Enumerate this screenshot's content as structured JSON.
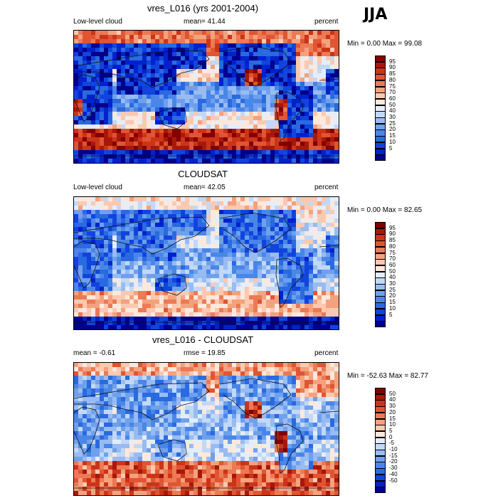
{
  "season": "JJA",
  "palette_levels": [
    "#00008b",
    "#0022cc",
    "#1144dd",
    "#2a6ae0",
    "#4a86e8",
    "#6fa0ec",
    "#98bcf2",
    "#c2d8f6",
    "#e4eefb",
    "#fde8dc",
    "#fbc9b0",
    "#f4a27e",
    "#ec7a55",
    "#e05533",
    "#cc3418",
    "#a8180a",
    "#820000"
  ],
  "panels": [
    {
      "title": "vres_L016 (yrs 2001-2004)",
      "left_label": "Low-level cloud",
      "mid_label": "mean=  41.44",
      "right_label": "percent",
      "minmax": "Min =   0.00 Max =  99.08",
      "colorbar_labels": [
        "95",
        "90",
        "85",
        "80",
        "75",
        "70",
        "60",
        "50",
        "40",
        "30",
        "25",
        "20",
        "15",
        "10",
        "5"
      ]
    },
    {
      "title": "CLOUDSAT",
      "left_label": "Low-level cloud",
      "mid_label": "mean=  42.05",
      "right_label": "percent",
      "minmax": "Min =   0.00 Max =  82.65",
      "colorbar_labels": [
        "95",
        "90",
        "85",
        "80",
        "75",
        "70",
        "60",
        "50",
        "40",
        "30",
        "25",
        "20",
        "15",
        "10",
        "5"
      ]
    },
    {
      "title": "vres_L016 - CLOUDSAT",
      "left_label": "mean =  -0.61",
      "mid_label": "rmse =  19.85",
      "right_label": "percent",
      "minmax": "Min = -52.63 Max =  82.77",
      "colorbar_labels": [
        "50",
        "40",
        "30",
        "20",
        "15",
        "10",
        "5",
        "0",
        "-5",
        "-10",
        "-15",
        "-20",
        "-30",
        "-40",
        "-50"
      ]
    }
  ],
  "chart_data": [
    {
      "type": "heatmap",
      "title": "vres_L016 (yrs 2001-2004)",
      "units": "percent",
      "mean": 41.44,
      "min": 0.0,
      "max": 99.08,
      "contour_levels": [
        5,
        10,
        15,
        20,
        25,
        30,
        40,
        50,
        60,
        70,
        75,
        80,
        85,
        90,
        95
      ],
      "field_description_bands": [
        "high (80-99) poleward of 50S and in Arctic",
        "low (5-20) over tropical land and warm pool",
        "moderate (40-60) subtropical oceans"
      ]
    },
    {
      "type": "heatmap",
      "title": "CLOUDSAT",
      "units": "percent",
      "mean": 42.05,
      "min": 0.0,
      "max": 82.65,
      "contour_levels": [
        5,
        10,
        15,
        20,
        25,
        30,
        40,
        50,
        60,
        70,
        75,
        80,
        85,
        90,
        95
      ]
    },
    {
      "type": "heatmap",
      "title": "vres_L016 - CLOUDSAT",
      "units": "percent",
      "mean": -0.61,
      "rmse": 19.85,
      "min": -52.63,
      "max": 82.77,
      "contour_levels": [
        -50,
        -40,
        -30,
        -20,
        -15,
        -10,
        -5,
        0,
        5,
        10,
        15,
        20,
        30,
        40,
        50
      ]
    }
  ]
}
